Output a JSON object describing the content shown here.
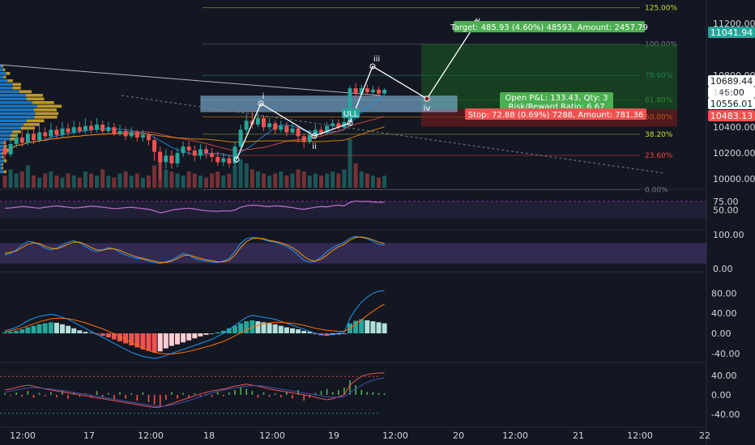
{
  "chart_data": [
    {
      "type": "candlestick",
      "panel": "price",
      "x_labels": [
        "12:00",
        "17",
        "12:00",
        "18",
        "12:00",
        "19",
        "12:00",
        "20",
        "12:00",
        "21",
        "12:00",
        "22"
      ],
      "y_ticks": [
        "11200.00",
        "10800.00",
        "10400.00",
        "10200.00",
        "10000.00"
      ],
      "price_badges": [
        {
          "value": "11041.94",
          "color": "#26a69a"
        },
        {
          "value": "10689.44",
          "color": "#ffffff"
        },
        {
          "value": "46:00",
          "color": "#ffffff"
        },
        {
          "value": "10556.01",
          "color": "#ffffff"
        },
        {
          "value": "10483.13",
          "color": "#ef5350"
        }
      ],
      "partial_axis_label": "104",
      "fib_levels": [
        {
          "label": "125.00%",
          "value": 11323,
          "color": "#cddc39"
        },
        {
          "label": "100.00%",
          "value": 11042,
          "color": "#787b86"
        },
        {
          "label": "78.60%",
          "value": 10800,
          "color": "#26a69a"
        },
        {
          "label": "61.80%",
          "value": 10612,
          "color": "#4caf50"
        },
        {
          "label": "50.00%",
          "value": 10479,
          "color": "#ff9800"
        },
        {
          "label": "38.20%",
          "value": 10346,
          "color": "#cddc39"
        },
        {
          "label": "23.60%",
          "value": 10182,
          "color": "#f44336"
        },
        {
          "label": "0.00%",
          "value": 9917,
          "color": "#787b86"
        }
      ],
      "wave_labels": [
        {
          "text": "i",
          "x": 0.32,
          "value": 10520
        },
        {
          "text": "ii",
          "x": 0.41,
          "value": 10250
        },
        {
          "text": "iii",
          "x": 0.49,
          "value": 10760
        },
        {
          "text": "iv",
          "x": 0.565,
          "value": 10500
        },
        {
          "text": "v",
          "x": 0.635,
          "value": 11050
        }
      ],
      "trade_labels": {
        "target": "Target: 485.93 (4.60%) 48593, Amount: 2457.79",
        "open_pnl": "Open P&L: 133.43, Qty: 3",
        "rr": "Risk/Reward Ratio: 6.67",
        "stop": "Stop: 72.88 (0.69%) 7288, Amount: 781.36",
        "pattern_tag": "ULL"
      },
      "candles": [
        {
          "o": 10240,
          "c": 10190,
          "h": 10300,
          "l": 10150
        },
        {
          "o": 10190,
          "c": 10270,
          "h": 10320,
          "l": 10170
        },
        {
          "o": 10270,
          "c": 10320,
          "h": 10360,
          "l": 10240
        },
        {
          "o": 10320,
          "c": 10280,
          "h": 10380,
          "l": 10250
        },
        {
          "o": 10280,
          "c": 10350,
          "h": 10400,
          "l": 10260
        },
        {
          "o": 10350,
          "c": 10300,
          "h": 10390,
          "l": 10270
        },
        {
          "o": 10300,
          "c": 10360,
          "h": 10410,
          "l": 10280
        },
        {
          "o": 10360,
          "c": 10330,
          "h": 10400,
          "l": 10300
        },
        {
          "o": 10330,
          "c": 10380,
          "h": 10430,
          "l": 10310
        },
        {
          "o": 10380,
          "c": 10340,
          "h": 10410,
          "l": 10310
        },
        {
          "o": 10340,
          "c": 10390,
          "h": 10440,
          "l": 10320
        },
        {
          "o": 10390,
          "c": 10360,
          "h": 10430,
          "l": 10330
        },
        {
          "o": 10360,
          "c": 10400,
          "h": 10450,
          "l": 10340
        },
        {
          "o": 10400,
          "c": 10370,
          "h": 10440,
          "l": 10350
        },
        {
          "o": 10370,
          "c": 10410,
          "h": 10470,
          "l": 10350
        },
        {
          "o": 10410,
          "c": 10380,
          "h": 10450,
          "l": 10350
        },
        {
          "o": 10380,
          "c": 10420,
          "h": 10470,
          "l": 10360
        },
        {
          "o": 10420,
          "c": 10370,
          "h": 10450,
          "l": 10340
        },
        {
          "o": 10370,
          "c": 10400,
          "h": 10440,
          "l": 10350
        },
        {
          "o": 10400,
          "c": 10350,
          "h": 10430,
          "l": 10330
        },
        {
          "o": 10350,
          "c": 10370,
          "h": 10420,
          "l": 10330
        },
        {
          "o": 10370,
          "c": 10330,
          "h": 10400,
          "l": 10300
        },
        {
          "o": 10330,
          "c": 10360,
          "h": 10400,
          "l": 10310
        },
        {
          "o": 10360,
          "c": 10320,
          "h": 10380,
          "l": 10290
        },
        {
          "o": 10320,
          "c": 10340,
          "h": 10380,
          "l": 10290
        },
        {
          "o": 10340,
          "c": 10300,
          "h": 10360,
          "l": 10260
        },
        {
          "o": 10300,
          "c": 10210,
          "h": 10320,
          "l": 10140
        },
        {
          "o": 10210,
          "c": 10130,
          "h": 10250,
          "l": 10000
        },
        {
          "o": 10130,
          "c": 10180,
          "h": 10230,
          "l": 10080
        },
        {
          "o": 10180,
          "c": 10120,
          "h": 10220,
          "l": 10080
        },
        {
          "o": 10120,
          "c": 10200,
          "h": 10240,
          "l": 10090
        },
        {
          "o": 10200,
          "c": 10250,
          "h": 10290,
          "l": 10170
        },
        {
          "o": 10250,
          "c": 10220,
          "h": 10290,
          "l": 10180
        },
        {
          "o": 10220,
          "c": 10180,
          "h": 10260,
          "l": 10140
        },
        {
          "o": 10180,
          "c": 10230,
          "h": 10270,
          "l": 10150
        },
        {
          "o": 10230,
          "c": 10200,
          "h": 10260,
          "l": 10160
        },
        {
          "o": 10200,
          "c": 10170,
          "h": 10240,
          "l": 10130
        },
        {
          "o": 10170,
          "c": 10130,
          "h": 10210,
          "l": 10100
        },
        {
          "o": 10130,
          "c": 10160,
          "h": 10200,
          "l": 10100
        },
        {
          "o": 10160,
          "c": 10120,
          "h": 10190,
          "l": 10090
        },
        {
          "o": 10120,
          "c": 10250,
          "h": 10290,
          "l": 10100
        },
        {
          "o": 10250,
          "c": 10380,
          "h": 10420,
          "l": 10230
        },
        {
          "o": 10380,
          "c": 10450,
          "h": 10500,
          "l": 10350
        },
        {
          "o": 10450,
          "c": 10420,
          "h": 10530,
          "l": 10390
        },
        {
          "o": 10420,
          "c": 10470,
          "h": 10510,
          "l": 10400
        },
        {
          "o": 10470,
          "c": 10400,
          "h": 10490,
          "l": 10370
        },
        {
          "o": 10400,
          "c": 10430,
          "h": 10470,
          "l": 10380
        },
        {
          "o": 10430,
          "c": 10380,
          "h": 10450,
          "l": 10350
        },
        {
          "o": 10380,
          "c": 10410,
          "h": 10450,
          "l": 10360
        },
        {
          "o": 10410,
          "c": 10360,
          "h": 10440,
          "l": 10330
        },
        {
          "o": 10360,
          "c": 10390,
          "h": 10430,
          "l": 10340
        },
        {
          "o": 10390,
          "c": 10330,
          "h": 10410,
          "l": 10280
        },
        {
          "o": 10330,
          "c": 10290,
          "h": 10350,
          "l": 10240
        },
        {
          "o": 10290,
          "c": 10340,
          "h": 10380,
          "l": 10270
        },
        {
          "o": 10340,
          "c": 10380,
          "h": 10420,
          "l": 10310
        },
        {
          "o": 10380,
          "c": 10360,
          "h": 10410,
          "l": 10330
        },
        {
          "o": 10360,
          "c": 10410,
          "h": 10440,
          "l": 10340
        },
        {
          "o": 10410,
          "c": 10430,
          "h": 10460,
          "l": 10390
        },
        {
          "o": 10430,
          "c": 10400,
          "h": 10460,
          "l": 10380
        },
        {
          "o": 10400,
          "c": 10440,
          "h": 10480,
          "l": 10390
        },
        {
          "o": 10440,
          "c": 10700,
          "h": 10720,
          "l": 10420
        },
        {
          "o": 10700,
          "c": 10660,
          "h": 10740,
          "l": 10630
        },
        {
          "o": 10660,
          "c": 10700,
          "h": 10730,
          "l": 10640
        },
        {
          "o": 10700,
          "c": 10670,
          "h": 10730,
          "l": 10650
        },
        {
          "o": 10670,
          "c": 10690,
          "h": 10720,
          "l": 10650
        },
        {
          "o": 10690,
          "c": 10660,
          "h": 10710,
          "l": 10640
        },
        {
          "o": 10660,
          "c": 10689,
          "h": 10700,
          "l": 10650
        }
      ],
      "volumes": [
        30,
        45,
        35,
        40,
        55,
        30,
        25,
        35,
        40,
        30,
        25,
        35,
        30,
        25,
        40,
        35,
        30,
        45,
        30,
        25,
        35,
        40,
        30,
        35,
        25,
        30,
        55,
        80,
        45,
        40,
        35,
        30,
        40,
        35,
        30,
        25,
        35,
        40,
        30,
        35,
        55,
        70,
        60,
        45,
        40,
        35,
        30,
        35,
        40,
        30,
        35,
        45,
        40,
        30,
        35,
        30,
        35,
        40,
        35,
        45,
        120,
        60,
        40,
        35,
        30,
        25,
        30
      ]
    },
    {
      "type": "line",
      "panel": "rsi",
      "y_ticks": [
        "75.00",
        "50.00"
      ],
      "values": [
        55,
        56,
        58,
        60,
        59,
        57,
        55,
        58,
        60,
        62,
        60,
        58,
        56,
        57,
        59,
        61,
        60,
        58,
        56,
        54,
        55,
        57,
        58,
        56,
        54,
        52,
        48,
        42,
        45,
        50,
        52,
        54,
        55,
        53,
        50,
        48,
        47,
        46,
        48,
        47,
        50,
        58,
        62,
        64,
        63,
        61,
        60,
        62,
        61,
        59,
        57,
        54,
        52,
        55,
        58,
        60,
        59,
        62,
        64,
        62,
        72,
        76,
        74,
        75,
        73,
        72,
        73
      ]
    },
    {
      "type": "line",
      "panel": "stoch",
      "y_ticks": [
        "100.00",
        "0.00"
      ],
      "series": [
        {
          "color": "#2196f3",
          "values": [
            40,
            45,
            55,
            70,
            80,
            78,
            70,
            60,
            55,
            60,
            70,
            78,
            82,
            76,
            65,
            55,
            50,
            55,
            62,
            58,
            48,
            40,
            35,
            30,
            28,
            22,
            18,
            15,
            20,
            25,
            35,
            45,
            40,
            30,
            25,
            22,
            20,
            18,
            22,
            30,
            50,
            75,
            88,
            92,
            90,
            85,
            80,
            78,
            72,
            65,
            55,
            40,
            25,
            18,
            22,
            35,
            50,
            62,
            70,
            78,
            90,
            95,
            92,
            88,
            80,
            72,
            70
          ]
        },
        {
          "color": "#ff9800",
          "values": [
            45,
            48,
            52,
            62,
            72,
            76,
            74,
            66,
            60,
            58,
            64,
            72,
            78,
            78,
            72,
            62,
            55,
            54,
            58,
            58,
            54,
            46,
            40,
            34,
            30,
            26,
            22,
            18,
            18,
            22,
            30,
            38,
            40,
            35,
            30,
            26,
            23,
            20,
            20,
            25,
            40,
            62,
            80,
            88,
            90,
            88,
            83,
            80,
            76,
            70,
            62,
            50,
            36,
            26,
            22,
            28,
            40,
            54,
            64,
            72,
            84,
            92,
            93,
            90,
            85,
            78,
            74
          ]
        }
      ]
    },
    {
      "type": "bar",
      "panel": "macd",
      "y_ticks": [
        "80.00",
        "40.00",
        "0.00",
        "-40.00"
      ],
      "histogram": [
        2,
        3,
        5,
        8,
        12,
        15,
        18,
        20,
        22,
        21,
        18,
        15,
        10,
        6,
        3,
        1,
        -2,
        -5,
        -8,
        -12,
        -16,
        -20,
        -24,
        -28,
        -32,
        -35,
        -38,
        -36,
        -30,
        -25,
        -22,
        -18,
        -14,
        -10,
        -6,
        -3,
        -1,
        2,
        5,
        10,
        15,
        20,
        24,
        26,
        24,
        22,
        20,
        18,
        15,
        12,
        10,
        8,
        5,
        3,
        -2,
        -4,
        -5,
        -3,
        -2,
        -1,
        20,
        25,
        28,
        26,
        24,
        22,
        20
      ],
      "macd_line": [
        5,
        8,
        12,
        18,
        25,
        30,
        34,
        36,
        38,
        36,
        32,
        28,
        22,
        16,
        10,
        4,
        -2,
        -8,
        -14,
        -20,
        -26,
        -32,
        -38,
        -42,
        -46,
        -48,
        -50,
        -48,
        -44,
        -40,
        -36,
        -32,
        -28,
        -24,
        -20,
        -16,
        -12,
        -6,
        0,
        8,
        16,
        24,
        32,
        36,
        34,
        32,
        30,
        28,
        24,
        20,
        16,
        12,
        8,
        4,
        0,
        -2,
        -4,
        -2,
        0,
        2,
        30,
        48,
        62,
        72,
        80,
        84,
        85
      ],
      "signal_line": [
        3,
        5,
        8,
        11,
        15,
        19,
        23,
        26,
        29,
        30,
        30,
        29,
        27,
        24,
        21,
        17,
        13,
        9,
        4,
        -1,
        -6,
        -12,
        -18,
        -24,
        -29,
        -34,
        -38,
        -40,
        -41,
        -41,
        -40,
        -38,
        -36,
        -33,
        -30,
        -27,
        -24,
        -20,
        -16,
        -11,
        -5,
        1,
        7,
        12,
        16,
        19,
        21,
        22,
        22,
        21,
        20,
        18,
        16,
        13,
        10,
        8,
        6,
        5,
        4,
        4,
        10,
        18,
        27,
        36,
        44,
        52,
        58
      ]
    },
    {
      "type": "bar",
      "panel": "osc",
      "y_ticks": [
        "40.00",
        "0.00",
        "-40.00"
      ],
      "histogram": [
        3,
        -2,
        5,
        -4,
        8,
        -6,
        4,
        -3,
        6,
        -5,
        10,
        -8,
        5,
        -4,
        3,
        -6,
        8,
        -5,
        4,
        -10,
        6,
        -8,
        3,
        -12,
        5,
        -15,
        -20,
        -25,
        -10,
        6,
        -8,
        4,
        -6,
        3,
        -5,
        2,
        -4,
        6,
        -3,
        5,
        10,
        15,
        12,
        8,
        -6,
        5,
        -4,
        3,
        -5,
        6,
        -8,
        10,
        -12,
        -6,
        4,
        8,
        12,
        6,
        10,
        15,
        30,
        20,
        10,
        6,
        5,
        4,
        3
      ],
      "line_a": [
        10,
        12,
        15,
        18,
        20,
        18,
        15,
        12,
        10,
        8,
        6,
        4,
        2,
        0,
        -2,
        -4,
        -6,
        -8,
        -10,
        -12,
        -14,
        -16,
        -18,
        -20,
        -22,
        -24,
        -26,
        -25,
        -22,
        -18,
        -14,
        -10,
        -6,
        -2,
        2,
        5,
        8,
        10,
        12,
        15,
        18,
        20,
        22,
        20,
        18,
        15,
        12,
        10,
        8,
        6,
        4,
        2,
        0,
        -2,
        -5,
        -8,
        -10,
        -8,
        -4,
        0,
        20,
        30,
        38,
        42,
        44,
        45,
        45
      ],
      "line_b": [
        5,
        8,
        10,
        12,
        14,
        15,
        14,
        13,
        12,
        10,
        9,
        7,
        5,
        3,
        1,
        -1,
        -3,
        -5,
        -7,
        -9,
        -11,
        -13,
        -15,
        -17,
        -19,
        -21,
        -23,
        -24,
        -23,
        -21,
        -18,
        -15,
        -12,
        -8,
        -4,
        0,
        4,
        7,
        10,
        12,
        14,
        16,
        18,
        19,
        19,
        18,
        16,
        14,
        12,
        10,
        8,
        6,
        4,
        2,
        0,
        -2,
        -4,
        -5,
        -5,
        -4,
        5,
        12,
        20,
        26,
        30,
        33,
        35
      ]
    }
  ]
}
